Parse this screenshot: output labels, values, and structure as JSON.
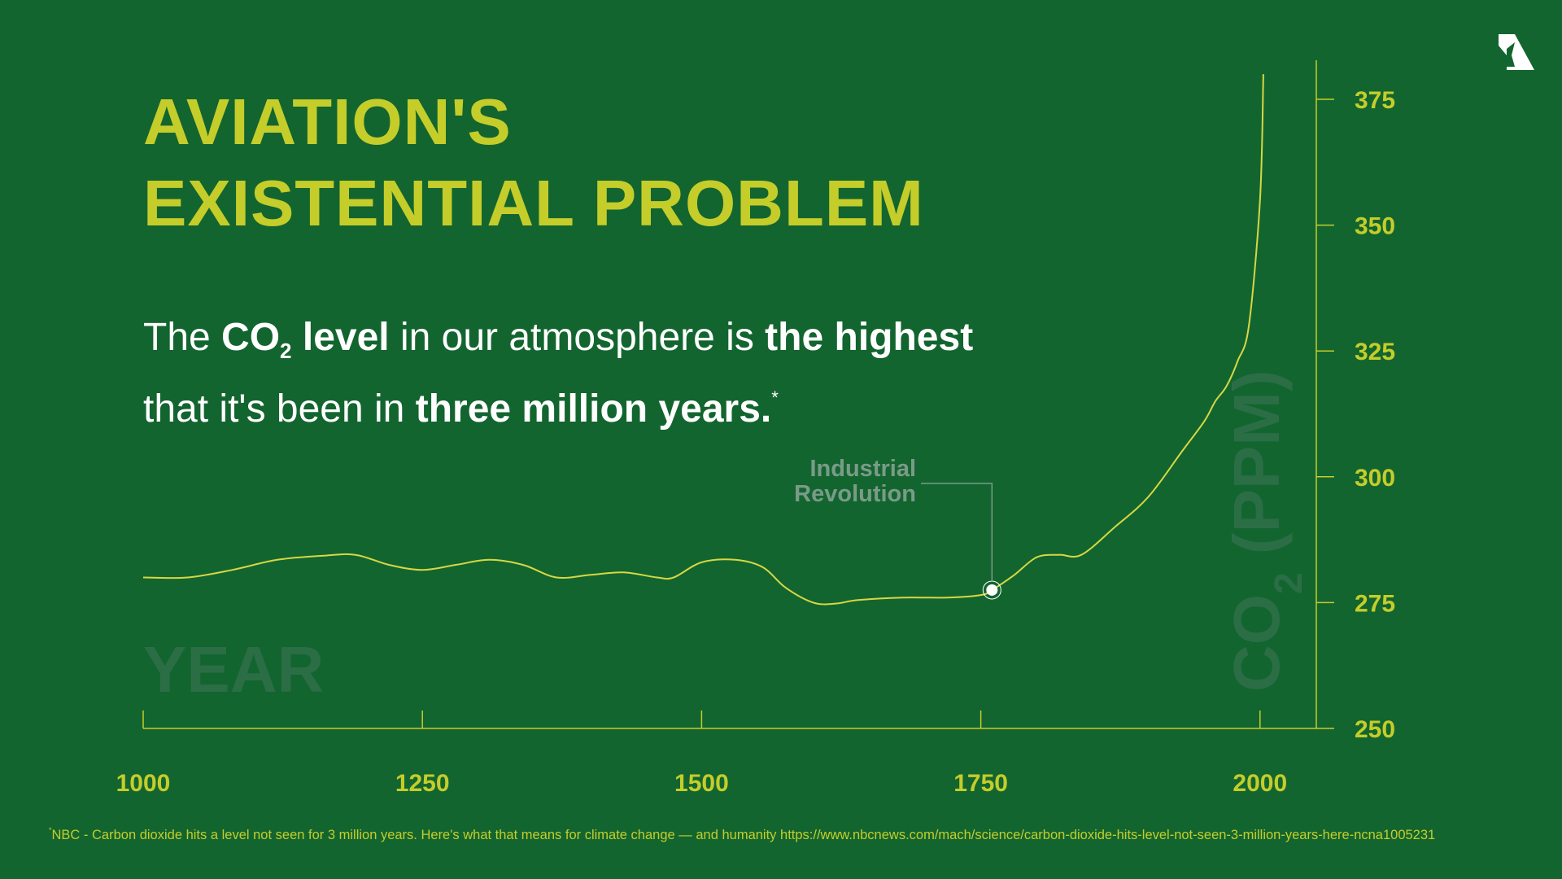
{
  "title_line1": "AVIATION'S",
  "title_line2": "EXISTENTIAL PROBLEM",
  "subtitle": {
    "p1": "The ",
    "co": "CO",
    "sub2": "2",
    "level": " level",
    "p2": " in our atmosphere is ",
    "highest": "the highest",
    "p3": "that it's been in ",
    "three": "three million years.",
    "star": "*"
  },
  "footnote": {
    "star": "*",
    "text": "NBC - Carbon dioxide hits a level not seen for 3 million years. Here's what that means for climate change — and humanity https://www.nbcnews.com/mach/science/carbon-dioxide-hits-level-not-seen-3-million-years-here-ncna1005231"
  },
  "logo_icon": "airline-tail-logo-icon",
  "colors": {
    "background": "#13652f",
    "accent": "#c4cd2a",
    "line": "#d6d843",
    "watermark": "#2b6e46",
    "annotation": "#7a9b88"
  },
  "chart_data": {
    "type": "line",
    "title": "",
    "xlabel": "YEAR",
    "ylabel": "CO2 (PPM)",
    "ylabel_main": "CO",
    "ylabel_sub": "2",
    "ylabel_unit": " (PPM)",
    "xlim": [
      1000,
      2050
    ],
    "ylim": [
      250,
      375
    ],
    "xticks": [
      1000,
      1250,
      1500,
      1750,
      2000
    ],
    "yticks": [
      250,
      275,
      300,
      325,
      350,
      375
    ],
    "grid": false,
    "series": [
      {
        "x": [
          1000,
          1040,
          1080,
          1120,
          1160,
          1190,
          1220,
          1250,
          1280,
          1310,
          1340,
          1370,
          1400,
          1430,
          1460,
          1475,
          1500,
          1530,
          1555,
          1575,
          1600,
          1620,
          1640,
          1680,
          1720,
          1750,
          1760,
          1780,
          1800,
          1820,
          1840,
          1870,
          1900,
          1930,
          1950,
          1960,
          1970,
          1980,
          1990,
          2000,
          2003
        ],
        "y": [
          280,
          280,
          281.5,
          283.5,
          284.3,
          284.5,
          282.5,
          281.5,
          282.5,
          283.5,
          282.5,
          280,
          280.5,
          281,
          280,
          280,
          283,
          283.5,
          282,
          278,
          275,
          274.8,
          275.5,
          276,
          276,
          276.5,
          277.5,
          280.5,
          284,
          284.5,
          284.5,
          290,
          296,
          305,
          311,
          315,
          318,
          323,
          330,
          355,
          380
        ]
      }
    ],
    "annotations": [
      {
        "text_line1": "Industrial",
        "text_line2": "Revolution",
        "x": 1760,
        "y": 277.5
      }
    ]
  }
}
